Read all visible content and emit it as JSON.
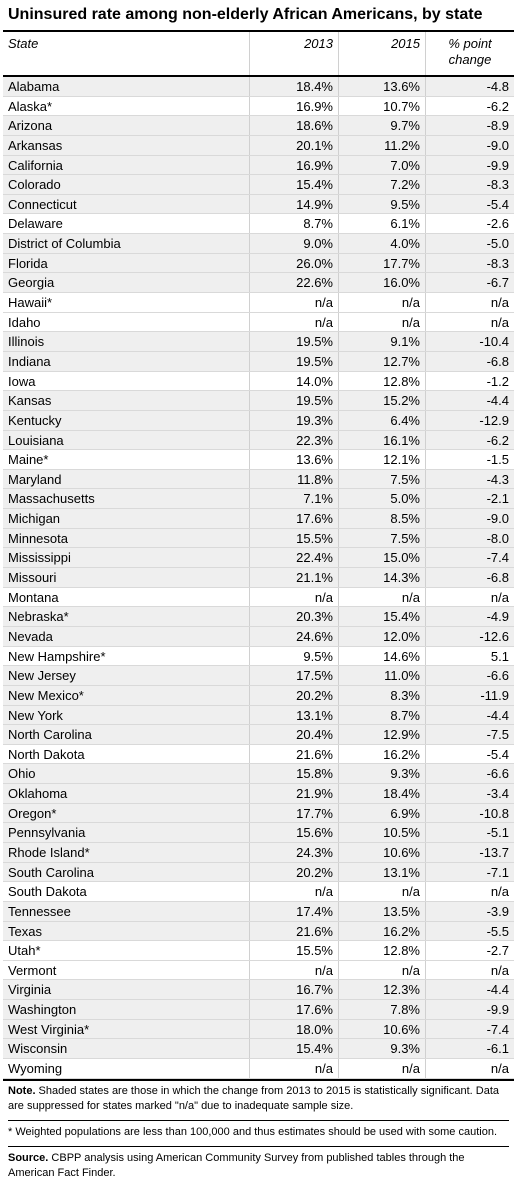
{
  "title": "Uninsured rate among non-elderly African Americans, by state",
  "header": {
    "state": "State",
    "y1": "2013",
    "y2": "2015",
    "change_line1": "% point",
    "change_line2": "change"
  },
  "rows": [
    {
      "state": "Alabama",
      "y2013": "18.4%",
      "y2015": "13.6%",
      "change": "-4.8",
      "shaded": true
    },
    {
      "state": "Alaska*",
      "y2013": "16.9%",
      "y2015": "10.7%",
      "change": "-6.2",
      "shaded": false
    },
    {
      "state": "Arizona",
      "y2013": "18.6%",
      "y2015": "9.7%",
      "change": "-8.9",
      "shaded": true
    },
    {
      "state": "Arkansas",
      "y2013": "20.1%",
      "y2015": "11.2%",
      "change": "-9.0",
      "shaded": true
    },
    {
      "state": "California",
      "y2013": "16.9%",
      "y2015": "7.0%",
      "change": "-9.9",
      "shaded": true
    },
    {
      "state": "Colorado",
      "y2013": "15.4%",
      "y2015": "7.2%",
      "change": "-8.3",
      "shaded": true
    },
    {
      "state": "Connecticut",
      "y2013": "14.9%",
      "y2015": "9.5%",
      "change": "-5.4",
      "shaded": true
    },
    {
      "state": "Delaware",
      "y2013": "8.7%",
      "y2015": "6.1%",
      "change": "-2.6",
      "shaded": false
    },
    {
      "state": "District of Columbia",
      "y2013": "9.0%",
      "y2015": "4.0%",
      "change": "-5.0",
      "shaded": true
    },
    {
      "state": "Florida",
      "y2013": "26.0%",
      "y2015": "17.7%",
      "change": "-8.3",
      "shaded": true
    },
    {
      "state": "Georgia",
      "y2013": "22.6%",
      "y2015": "16.0%",
      "change": "-6.7",
      "shaded": true
    },
    {
      "state": "Hawaii*",
      "y2013": "n/a",
      "y2015": "n/a",
      "change": "n/a",
      "shaded": false
    },
    {
      "state": "Idaho",
      "y2013": "n/a",
      "y2015": "n/a",
      "change": "n/a",
      "shaded": false
    },
    {
      "state": "Illinois",
      "y2013": "19.5%",
      "y2015": "9.1%",
      "change": "-10.4",
      "shaded": true
    },
    {
      "state": "Indiana",
      "y2013": "19.5%",
      "y2015": "12.7%",
      "change": "-6.8",
      "shaded": true
    },
    {
      "state": "Iowa",
      "y2013": "14.0%",
      "y2015": "12.8%",
      "change": "-1.2",
      "shaded": false
    },
    {
      "state": "Kansas",
      "y2013": "19.5%",
      "y2015": "15.2%",
      "change": "-4.4",
      "shaded": true
    },
    {
      "state": "Kentucky",
      "y2013": "19.3%",
      "y2015": "6.4%",
      "change": "-12.9",
      "shaded": true
    },
    {
      "state": "Louisiana",
      "y2013": "22.3%",
      "y2015": "16.1%",
      "change": "-6.2",
      "shaded": true
    },
    {
      "state": "Maine*",
      "y2013": "13.6%",
      "y2015": "12.1%",
      "change": "-1.5",
      "shaded": false
    },
    {
      "state": "Maryland",
      "y2013": "11.8%",
      "y2015": "7.5%",
      "change": "-4.3",
      "shaded": true
    },
    {
      "state": "Massachusetts",
      "y2013": "7.1%",
      "y2015": "5.0%",
      "change": "-2.1",
      "shaded": true
    },
    {
      "state": "Michigan",
      "y2013": "17.6%",
      "y2015": "8.5%",
      "change": "-9.0",
      "shaded": true
    },
    {
      "state": "Minnesota",
      "y2013": "15.5%",
      "y2015": "7.5%",
      "change": "-8.0",
      "shaded": true
    },
    {
      "state": "Mississippi",
      "y2013": "22.4%",
      "y2015": "15.0%",
      "change": "-7.4",
      "shaded": true
    },
    {
      "state": "Missouri",
      "y2013": "21.1%",
      "y2015": "14.3%",
      "change": "-6.8",
      "shaded": true
    },
    {
      "state": "Montana",
      "y2013": "n/a",
      "y2015": "n/a",
      "change": "n/a",
      "shaded": false
    },
    {
      "state": "Nebraska*",
      "y2013": "20.3%",
      "y2015": "15.4%",
      "change": "-4.9",
      "shaded": true
    },
    {
      "state": "Nevada",
      "y2013": "24.6%",
      "y2015": "12.0%",
      "change": "-12.6",
      "shaded": true
    },
    {
      "state": "New Hampshire*",
      "y2013": "9.5%",
      "y2015": "14.6%",
      "change": "5.1",
      "shaded": false
    },
    {
      "state": "New Jersey",
      "y2013": "17.5%",
      "y2015": "11.0%",
      "change": "-6.6",
      "shaded": true
    },
    {
      "state": "New Mexico*",
      "y2013": "20.2%",
      "y2015": "8.3%",
      "change": "-11.9",
      "shaded": true
    },
    {
      "state": "New York",
      "y2013": "13.1%",
      "y2015": "8.7%",
      "change": "-4.4",
      "shaded": true
    },
    {
      "state": "North Carolina",
      "y2013": "20.4%",
      "y2015": "12.9%",
      "change": "-7.5",
      "shaded": true
    },
    {
      "state": "North Dakota",
      "y2013": "21.6%",
      "y2015": "16.2%",
      "change": "-5.4",
      "shaded": false
    },
    {
      "state": "Ohio",
      "y2013": "15.8%",
      "y2015": "9.3%",
      "change": "-6.6",
      "shaded": true
    },
    {
      "state": "Oklahoma",
      "y2013": "21.9%",
      "y2015": "18.4%",
      "change": "-3.4",
      "shaded": true
    },
    {
      "state": "Oregon*",
      "y2013": "17.7%",
      "y2015": "6.9%",
      "change": "-10.8",
      "shaded": true
    },
    {
      "state": "Pennsylvania",
      "y2013": "15.6%",
      "y2015": "10.5%",
      "change": "-5.1",
      "shaded": true
    },
    {
      "state": "Rhode Island*",
      "y2013": "24.3%",
      "y2015": "10.6%",
      "change": "-13.7",
      "shaded": true
    },
    {
      "state": "South Carolina",
      "y2013": "20.2%",
      "y2015": "13.1%",
      "change": "-7.1",
      "shaded": true
    },
    {
      "state": "South Dakota",
      "y2013": "n/a",
      "y2015": "n/a",
      "change": "n/a",
      "shaded": false
    },
    {
      "state": "Tennessee",
      "y2013": "17.4%",
      "y2015": "13.5%",
      "change": "-3.9",
      "shaded": true
    },
    {
      "state": "Texas",
      "y2013": "21.6%",
      "y2015": "16.2%",
      "change": "-5.5",
      "shaded": true
    },
    {
      "state": "Utah*",
      "y2013": "15.5%",
      "y2015": "12.8%",
      "change": "-2.7",
      "shaded": false
    },
    {
      "state": "Vermont",
      "y2013": "n/a",
      "y2015": "n/a",
      "change": "n/a",
      "shaded": false
    },
    {
      "state": "Virginia",
      "y2013": "16.7%",
      "y2015": "12.3%",
      "change": "-4.4",
      "shaded": true
    },
    {
      "state": "Washington",
      "y2013": "17.6%",
      "y2015": "7.8%",
      "change": "-9.9",
      "shaded": true
    },
    {
      "state": "West Virginia*",
      "y2013": "18.0%",
      "y2015": "10.6%",
      "change": "-7.4",
      "shaded": true
    },
    {
      "state": "Wisconsin",
      "y2013": "15.4%",
      "y2015": "9.3%",
      "change": "-6.1",
      "shaded": true
    },
    {
      "state": "Wyoming",
      "y2013": "n/a",
      "y2015": "n/a",
      "change": "n/a",
      "shaded": false
    }
  ],
  "notes": {
    "note_label": "Note.",
    "note_text": " Shaded states are those in which the change from 2013 to 2015 is statistically significant.  Data are suppressed for states marked \"n/a\" due to inadequate sample size.",
    "weighted_text": "* Weighted populations are less than 100,000 and thus estimates should be used with some caution.",
    "source_label": "Source.",
    "source_text": " CBPP analysis using American Community Survey from published tables through the American Fact Finder."
  },
  "colors": {
    "shaded": "#efefef",
    "unshaded": "#ffffff",
    "rule": "#000000"
  }
}
